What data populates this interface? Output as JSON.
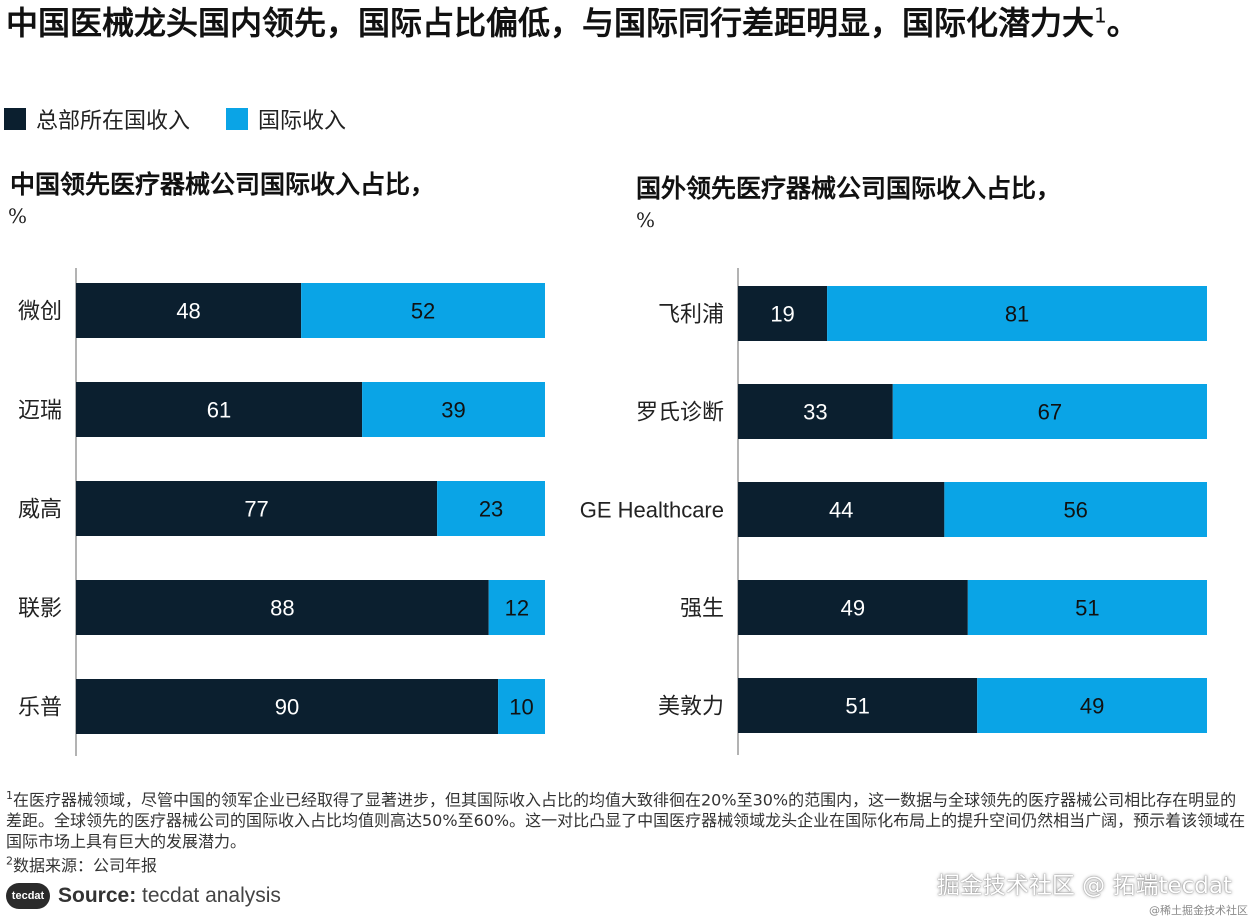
{
  "title": "中国医械龙头国内领先，国际占比偏低，与国际同行差距明显，国际化潜力大",
  "title_sup": "1",
  "title_end": "。",
  "legend": {
    "domestic": {
      "label": "总部所在国收入",
      "color": "#0b1f2f"
    },
    "international": {
      "label": "国际收入",
      "color": "#0aa4e6"
    }
  },
  "charts": {
    "left": {
      "title": "中国领先医疗器械公司国际收入占比，",
      "unit": "%"
    },
    "right": {
      "title": "国外领先医疗器械公司国际收入占比，",
      "unit": "%"
    }
  },
  "chart_data": [
    {
      "type": "bar",
      "orientation": "horizontal-stacked-100",
      "title": "中国领先医疗器械公司国际收入占比，",
      "unit": "%",
      "categories": [
        "微创",
        "迈瑞",
        "威高",
        "联影",
        "乐普"
      ],
      "series": [
        {
          "name": "总部所在国收入",
          "values": [
            48,
            61,
            77,
            88,
            90
          ],
          "color": "#0b1f2f"
        },
        {
          "name": "国际收入",
          "values": [
            52,
            39,
            23,
            12,
            10
          ],
          "color": "#0aa4e6"
        }
      ],
      "xlim": [
        0,
        100
      ]
    },
    {
      "type": "bar",
      "orientation": "horizontal-stacked-100",
      "title": "国外领先医疗器械公司国际收入占比，",
      "unit": "%",
      "categories": [
        "飞利浦",
        "罗氏诊断",
        "GE Healthcare",
        "强生",
        "美敦力"
      ],
      "series": [
        {
          "name": "总部所在国收入",
          "values": [
            19,
            33,
            44,
            49,
            51
          ],
          "color": "#0b1f2f"
        },
        {
          "name": "国际收入",
          "values": [
            81,
            67,
            56,
            51,
            49
          ],
          "color": "#0aa4e6"
        }
      ],
      "xlim": [
        0,
        100
      ]
    }
  ],
  "footnotes": {
    "note1_sup": "1",
    "note1": "在医疗器械领域，尽管中国的领军企业已经取得了显著进步，但其国际收入占比的均值大致徘徊在20%至30%的范围内，这一数据与全球领先的医疗器械公司相比存在明显的差距。全球领先的医疗器械公司的国际收入占比均值则高达50%至60%。这一对比凸显了中国医疗器械领域龙头企业在国际化布局上的提升空间仍然相当广阔，预示着该领域在国际市场上具有巨大的发展潜力。",
    "note2_sup": "2",
    "note2": "数据来源：公司年报"
  },
  "source": {
    "logo_text": "tecdat",
    "label": "Source:",
    "text": " tecdat analysis"
  },
  "watermark": {
    "main": "掘金技术社区 @ 拓端tecdat",
    "small": "@稀土掘金技术社区"
  }
}
